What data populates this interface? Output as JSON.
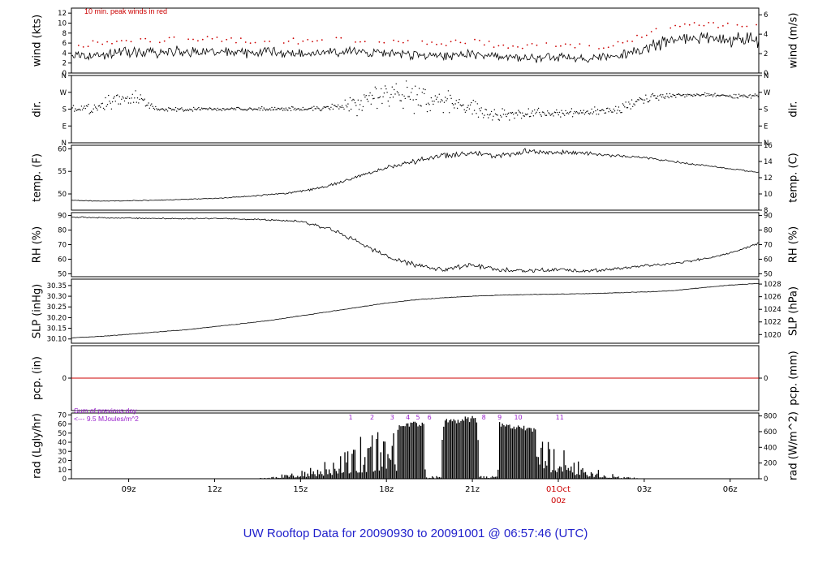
{
  "title": "UW Rooftop Data for 20090930  to  20091001 @ 06:57:46  (UTC)",
  "colors": {
    "red": "#cc0000",
    "purple": "#9922cc",
    "blue": "#2222cc",
    "black": "#000000"
  },
  "x_axis": {
    "xlim": [
      7,
      31
    ],
    "ticks": [
      {
        "h": 9,
        "label": "09z"
      },
      {
        "h": 12,
        "label": "12z"
      },
      {
        "h": 15,
        "label": "15z"
      },
      {
        "h": 18,
        "label": "18z"
      },
      {
        "h": 21,
        "label": "21z"
      },
      {
        "h": 24,
        "label": "01Oct",
        "label2": "00z",
        "color": "#cc0000"
      },
      {
        "h": 27,
        "label": "03z"
      },
      {
        "h": 30,
        "label": "06z"
      }
    ]
  },
  "chart_data": [
    {
      "id": "wind",
      "type": "line",
      "ylabel_left": "wind (kts)",
      "ylabel_right": "wind (m/s)",
      "note": "10 min. peak winds in red",
      "ylim": [
        0,
        13
      ],
      "ticks_left": [
        {
          "v": 0,
          "label": "0"
        },
        {
          "v": 2,
          "label": "2"
        },
        {
          "v": 4,
          "label": "4"
        },
        {
          "v": 6,
          "label": "6"
        },
        {
          "v": 8,
          "label": "8"
        },
        {
          "v": 10,
          "label": "10"
        },
        {
          "v": 12,
          "label": "12"
        }
      ],
      "ticks_right": [
        {
          "v": 0,
          "label": "0"
        },
        {
          "v": 3.89,
          "label": "2"
        },
        {
          "v": 7.78,
          "label": "4"
        },
        {
          "v": 11.66,
          "label": "6"
        }
      ],
      "x_start": 7,
      "x_step": 1,
      "values": [
        3.2,
        3.6,
        4.2,
        4.0,
        4.4,
        4.2,
        4.0,
        4.3,
        3.8,
        4.0,
        4.2,
        4.0,
        3.6,
        3.4,
        3.8,
        3.2,
        3.0,
        3.2,
        2.8,
        3.4,
        5.0,
        6.5,
        7.0,
        6.8,
        6.6
      ],
      "noise": {
        "mode": "scaled",
        "base": 0.5,
        "scale": 0.18
      },
      "peaks": {
        "color": "#cc0000",
        "offset": 2.0,
        "scale": 0.12,
        "jitter": 1.2
      }
    },
    {
      "id": "dir",
      "type": "scatter",
      "ylabel_left": "dir.",
      "ylabel_right": "dir.",
      "ylim": [
        0,
        360
      ],
      "ticks_left": [
        {
          "v": 0,
          "label": "N"
        },
        {
          "v": 90,
          "label": "E"
        },
        {
          "v": 180,
          "label": "S"
        },
        {
          "v": 270,
          "label": "W"
        },
        {
          "v": 360,
          "label": "N"
        }
      ],
      "ticks_right": [
        {
          "v": 0,
          "label": "N"
        },
        {
          "v": 90,
          "label": "E"
        },
        {
          "v": 180,
          "label": "S"
        },
        {
          "v": 270,
          "label": "W"
        },
        {
          "v": 360,
          "label": "N"
        }
      ],
      "x_start": 7,
      "x_step": 1,
      "values": [
        180,
        185,
        260,
        180,
        178,
        182,
        180,
        180,
        182,
        185,
        210,
        260,
        250,
        230,
        190,
        150,
        155,
        160,
        165,
        175,
        235,
        255,
        258,
        252,
        250
      ],
      "spread": [
        25,
        45,
        70,
        12,
        12,
        12,
        12,
        12,
        14,
        20,
        60,
        95,
        95,
        85,
        50,
        45,
        30,
        25,
        22,
        28,
        35,
        18,
        15,
        15,
        18
      ]
    },
    {
      "id": "temp",
      "type": "line",
      "ylabel_left": "temp. (F)",
      "ylabel_right": "temp. (C)",
      "ylim": [
        46.4,
        60.8
      ],
      "ticks_left": [
        {
          "v": 50,
          "label": "50"
        },
        {
          "v": 55,
          "label": "55"
        },
        {
          "v": 60,
          "label": "60"
        }
      ],
      "ticks_right": [
        {
          "v": 46.4,
          "label": "8"
        },
        {
          "v": 50,
          "label": "10"
        },
        {
          "v": 53.6,
          "label": "12"
        },
        {
          "v": 57.2,
          "label": "14"
        },
        {
          "v": 60.8,
          "label": "16"
        }
      ],
      "x_start": 7,
      "x_step": 1,
      "values": [
        48.6,
        48.4,
        48.5,
        48.6,
        48.8,
        49.0,
        49.4,
        49.9,
        50.5,
        51.8,
        53.8,
        55.8,
        57.2,
        58.5,
        59.0,
        58.5,
        59.5,
        59.2,
        59.0,
        58.5,
        58.0,
        57.2,
        56.4,
        55.6,
        54.8
      ],
      "noise": {
        "mode": "anchors",
        "values": [
          0.1,
          0.1,
          0.1,
          0.1,
          0.1,
          0.12,
          0.15,
          0.2,
          0.3,
          0.4,
          0.5,
          0.6,
          0.7,
          0.8,
          0.8,
          0.8,
          0.8,
          0.7,
          0.5,
          0.4,
          0.3,
          0.3,
          0.25,
          0.2,
          0.2
        ]
      }
    },
    {
      "id": "rh",
      "type": "line",
      "ylabel_left": "RH (%)",
      "ylabel_right": "RH (%)",
      "ylim": [
        48,
        92
      ],
      "ticks_left": [
        {
          "v": 50,
          "label": "50"
        },
        {
          "v": 60,
          "label": "60"
        },
        {
          "v": 70,
          "label": "70"
        },
        {
          "v": 80,
          "label": "80"
        },
        {
          "v": 90,
          "label": "90"
        }
      ],
      "ticks_right": [
        {
          "v": 50,
          "label": "50"
        },
        {
          "v": 60,
          "label": "60"
        },
        {
          "v": 70,
          "label": "70"
        },
        {
          "v": 80,
          "label": "80"
        },
        {
          "v": 90,
          "label": "90"
        }
      ],
      "x_start": 7,
      "x_step": 1,
      "values": [
        89,
        88.5,
        88.2,
        88,
        87.8,
        88,
        87.6,
        87,
        86,
        81,
        72,
        62,
        56,
        53,
        56,
        52.5,
        52,
        53,
        52,
        53.5,
        55.5,
        57,
        60,
        64,
        71
      ],
      "noise": {
        "mode": "anchors",
        "values": [
          0.5,
          0.5,
          0.5,
          0.5,
          0.5,
          0.5,
          0.6,
          0.8,
          1.0,
          1.5,
          2.0,
          2.0,
          2.0,
          2.0,
          2.0,
          2.0,
          2.0,
          1.5,
          1.5,
          1.5,
          1.2,
          1.0,
          1.0,
          0.8,
          0.8
        ]
      }
    },
    {
      "id": "slp",
      "type": "line",
      "ylabel_left": "SLP (inHg)",
      "ylabel_right": "SLP (hPa)",
      "ylim": [
        30.08,
        30.38
      ],
      "ticks_left": [
        {
          "v": 30.1,
          "label": "30.10"
        },
        {
          "v": 30.15,
          "label": "30.15"
        },
        {
          "v": 30.2,
          "label": "30.20"
        },
        {
          "v": 30.25,
          "label": "30.25"
        },
        {
          "v": 30.3,
          "label": "30.30"
        },
        {
          "v": 30.35,
          "label": "30.35"
        }
      ],
      "ticks_right": [
        {
          "v": 30.1206,
          "label": "1020"
        },
        {
          "v": 30.1797,
          "label": "1022"
        },
        {
          "v": 30.2387,
          "label": "1024"
        },
        {
          "v": 30.2978,
          "label": "1026"
        },
        {
          "v": 30.3569,
          "label": "1028"
        }
      ],
      "x_start": 7,
      "x_step": 1,
      "values": [
        30.105,
        30.112,
        30.122,
        30.133,
        30.143,
        30.158,
        30.172,
        30.188,
        30.208,
        30.228,
        30.248,
        30.268,
        30.283,
        30.293,
        30.3,
        30.305,
        30.308,
        30.31,
        30.312,
        30.316,
        30.32,
        30.326,
        30.34,
        30.352,
        30.36
      ],
      "noise": {
        "mode": "const",
        "amp": 0.0015
      }
    },
    {
      "id": "pcp",
      "type": "flat",
      "ylabel_left": "pcp. (in)",
      "ylabel_right": "pcp. (mm)",
      "ylim": [
        -0.6,
        0.6
      ],
      "value": 0,
      "color": "#cc0000",
      "ticks_left": [
        {
          "v": 0,
          "label": "0"
        }
      ],
      "ticks_right": [
        {
          "v": 0,
          "label": "0"
        }
      ]
    },
    {
      "id": "rad",
      "type": "bars",
      "ylabel_left": "rad (Lgly/hr)",
      "ylabel_right": "rad (W/m^2)",
      "sum_line1": "Sum of previous day",
      "sum_line2": "<--- 9.5 MJoules/m^2",
      "ylim": [
        0,
        72
      ],
      "ticks_left": [
        {
          "v": 0,
          "label": "0"
        },
        {
          "v": 10,
          "label": "10"
        },
        {
          "v": 20,
          "label": "20"
        },
        {
          "v": 30,
          "label": "30"
        },
        {
          "v": 40,
          "label": "40"
        },
        {
          "v": 50,
          "label": "50"
        },
        {
          "v": 60,
          "label": "60"
        },
        {
          "v": 70,
          "label": "70"
        }
      ],
      "ticks_right": [
        {
          "v": 0,
          "label": "0"
        },
        {
          "v": 17.2,
          "label": "200"
        },
        {
          "v": 34.4,
          "label": "400"
        },
        {
          "v": 51.6,
          "label": "600"
        },
        {
          "v": 68.8,
          "label": "800"
        }
      ],
      "x_start": 7,
      "x_step": 1,
      "values": [
        0,
        0,
        0,
        0,
        0,
        0,
        0,
        2,
        10,
        25,
        45,
        55,
        63,
        66,
        69,
        62,
        58,
        42,
        15,
        4,
        0,
        0,
        0,
        0,
        0
      ],
      "solid_windows": [
        [
          18.4,
          19.35
        ],
        [
          20.05,
          21.2
        ],
        [
          21.95,
          23.25
        ]
      ],
      "gap_windows": [
        [
          19.4,
          19.95
        ],
        [
          21.25,
          21.9
        ]
      ],
      "hour_marks": [
        {
          "label": "1",
          "h": 16.75
        },
        {
          "label": "2",
          "h": 17.5
        },
        {
          "label": "3",
          "h": 18.2
        },
        {
          "label": "4",
          "h": 18.75
        },
        {
          "label": "5",
          "h": 19.1
        },
        {
          "label": "6",
          "h": 19.5
        },
        {
          "label": "8",
          "h": 21.4
        },
        {
          "label": "9",
          "h": 21.95
        },
        {
          "label": "10",
          "h": 22.6
        },
        {
          "label": "11",
          "h": 24.05
        }
      ],
      "marks_color": "#9922cc"
    }
  ]
}
